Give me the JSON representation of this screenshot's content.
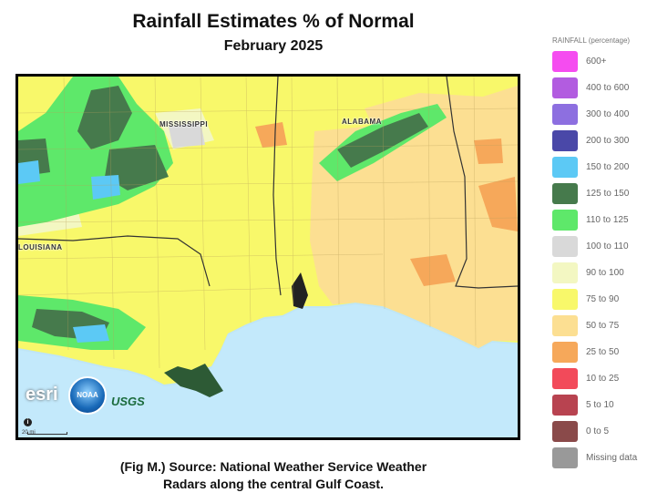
{
  "header": {
    "title": "Rainfall Estimates % of Normal",
    "subtitle": "February 2025"
  },
  "map": {
    "state_labels": {
      "mississippi": "MISSISSIPPI",
      "alabama": "ALABAMA",
      "louisiana": "LOUISIANA"
    },
    "logos": {
      "esri": "esri",
      "noaa": "NOAA",
      "usgs": "USGS"
    },
    "scale_label": "20 mi",
    "info_icon": "i"
  },
  "legend": {
    "title": "RAINFALL (percentage)",
    "items": [
      {
        "label": "600+",
        "color": "#f54cf0"
      },
      {
        "label": "400 to 600",
        "color": "#b25ce0"
      },
      {
        "label": "300 to 400",
        "color": "#8d6fe0"
      },
      {
        "label": "200 to 300",
        "color": "#4a48a8"
      },
      {
        "label": "150 to 200",
        "color": "#5cc9f5"
      },
      {
        "label": "125 to 150",
        "color": "#467a4c"
      },
      {
        "label": "110 to 125",
        "color": "#5ee86a"
      },
      {
        "label": "100 to 110",
        "color": "#d9d9d9"
      },
      {
        "label": "90 to 100",
        "color": "#f3f7c2"
      },
      {
        "label": "75 to 90",
        "color": "#f8f86a"
      },
      {
        "label": "50 to 75",
        "color": "#fcdf92"
      },
      {
        "label": "25 to 50",
        "color": "#f6a85a"
      },
      {
        "label": "10 to 25",
        "color": "#f24a5a"
      },
      {
        "label": "5 to 10",
        "color": "#b84350"
      },
      {
        "label": "0 to 5",
        "color": "#8a4a4a"
      },
      {
        "label": "Missing data",
        "color": "#999999"
      }
    ]
  },
  "caption": {
    "line1": "(Fig M.) Source: National Weather Service Weather",
    "line2": "Radars along the central Gulf Coast."
  }
}
